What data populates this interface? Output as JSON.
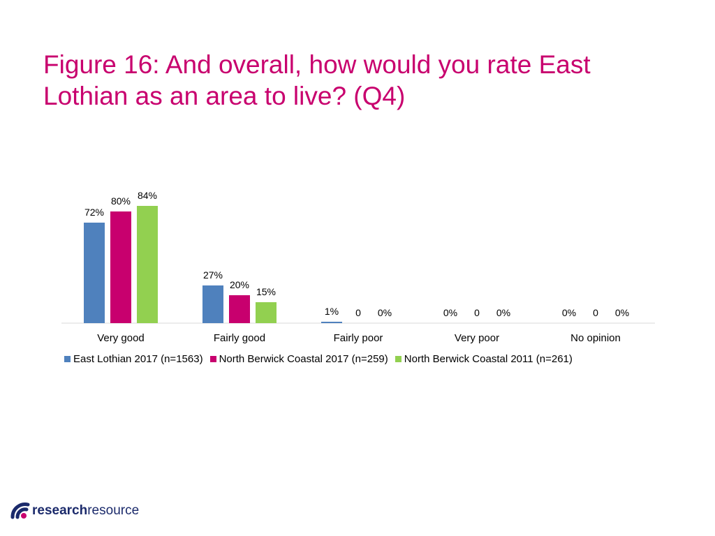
{
  "slide": {
    "title": "Figure 16: And overall, how would you rate East Lothian as an area to live? (Q4)",
    "title_color": "#c8006e"
  },
  "chart_data": {
    "type": "bar",
    "categories": [
      "Very good",
      "Fairly good",
      "Fairly poor",
      "Very poor",
      "No opinion"
    ],
    "series": [
      {
        "name": "East Lothian 2017 (n=1563)",
        "color": "#4f81bd",
        "values": [
          72,
          27,
          1,
          0,
          0
        ],
        "labels": [
          "72%",
          "27%",
          "1%",
          "0%",
          "0%"
        ]
      },
      {
        "name": "North Berwick Coastal 2017 (n=259)",
        "color": "#c8006e",
        "values": [
          80,
          20,
          0,
          0,
          0
        ],
        "labels": [
          "80%",
          "20%",
          "0",
          "0",
          "0"
        ]
      },
      {
        "name": "North Berwick Coastal 2011 (n=261)",
        "color": "#92d050",
        "values": [
          84,
          15,
          0,
          0,
          0
        ],
        "labels": [
          "84%",
          "15%",
          "0%",
          "0%",
          "0%"
        ]
      }
    ],
    "ylim": [
      0,
      100
    ],
    "grid": false,
    "legend": "bottom"
  },
  "logo": {
    "bold": "research",
    "regular": "resource",
    "text_color": "#1b2a6b",
    "mark_color": "#1b2a6b",
    "accent_color": "#c8006e"
  }
}
